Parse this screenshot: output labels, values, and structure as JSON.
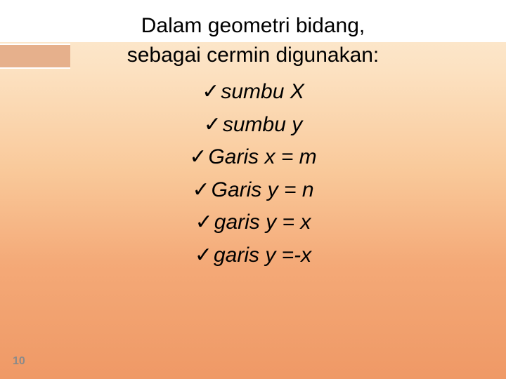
{
  "slide": {
    "colors": {
      "background_gradient": [
        "#fdecd6",
        "#fce2c2",
        "#f9c99a",
        "#f4a977",
        "#ef9966"
      ],
      "accent_bar": "#e6b08c",
      "text": "#000000",
      "page_number": "#8a8a8a",
      "top_mask": "#ffffff"
    },
    "typography": {
      "title_fontsize": 30,
      "list_fontsize": 30,
      "page_number_fontsize": 16,
      "font_family": "Segoe UI / Arial"
    },
    "title_line1": "Dalam geometri bidang,",
    "title_line2": "sebagai cermin digunakan:",
    "check_glyph": "✓",
    "items": [
      "sumbu X",
      "sumbu y",
      "Garis x = m",
      "Garis y = n",
      "garis y = x",
      "garis y =-x"
    ],
    "page_number": "10"
  }
}
